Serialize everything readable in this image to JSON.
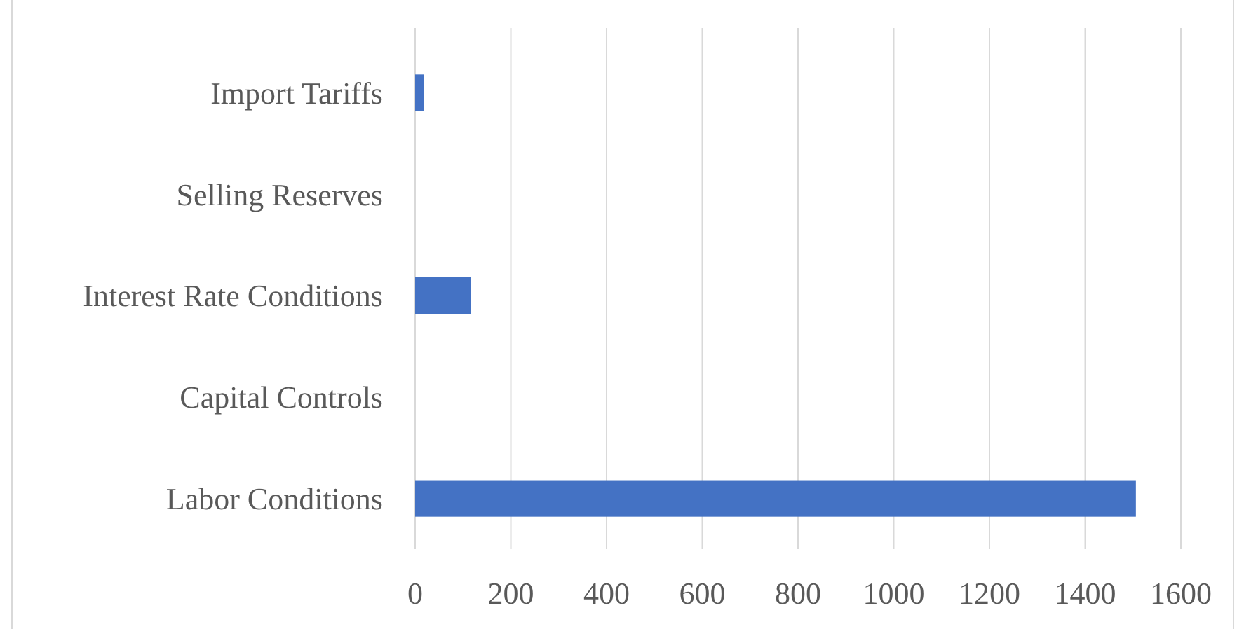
{
  "chart_data": {
    "type": "bar",
    "orientation": "horizontal",
    "categories": [
      "Import Tariffs",
      "Selling Reserves",
      "Interest Rate Conditions",
      "Capital Controls",
      "Labor Conditions"
    ],
    "values": [
      18,
      0,
      117,
      0,
      1506
    ],
    "color": "#4472c4",
    "xlim": [
      0,
      1600
    ],
    "xticks": [
      0,
      200,
      400,
      600,
      800,
      1000,
      1200,
      1400,
      1600
    ],
    "grid": "x"
  }
}
